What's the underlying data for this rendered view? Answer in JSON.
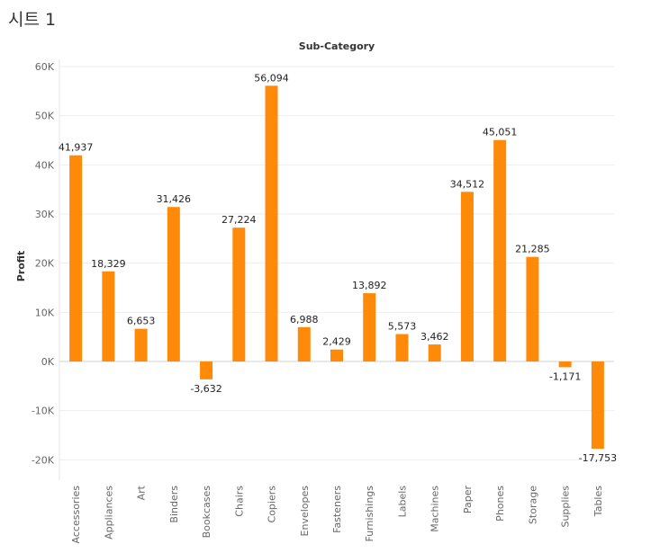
{
  "sheet": {
    "title": "시트 1"
  },
  "chart_data": {
    "type": "bar",
    "title": "Sub-Category",
    "xlabel": "",
    "ylabel": "Profit",
    "ylim": [
      -25000,
      62000
    ],
    "yticks": [
      -20000,
      -10000,
      0,
      10000,
      20000,
      30000,
      40000,
      50000,
      60000
    ],
    "ytick_labels": [
      "-20K",
      "-10K",
      "0K",
      "10K",
      "20K",
      "30K",
      "40K",
      "50K",
      "60K"
    ],
    "categories": [
      "Accessories",
      "Appliances",
      "Art",
      "Binders",
      "Bookcases",
      "Chairs",
      "Copiers",
      "Envelopes",
      "Fasteners",
      "Furnishings",
      "Labels",
      "Machines",
      "Paper",
      "Phones",
      "Storage",
      "Supplies",
      "Tables"
    ],
    "values": [
      41937,
      18329,
      6653,
      31426,
      -3632,
      27224,
      56094,
      6988,
      2429,
      13892,
      5573,
      3462,
      34512,
      45051,
      21285,
      -1171,
      -17753
    ],
    "value_labels": [
      "41,937",
      "18,329",
      "6,653",
      "31,426",
      "-3,632",
      "27,224",
      "56,094",
      "6,988",
      "2,429",
      "13,892",
      "5,573",
      "3,462",
      "34,512",
      "45,051",
      "21,285",
      "-1,171",
      "-17,753"
    ],
    "grid": true,
    "colors": {
      "bar": "#FF8A0A",
      "grid": "#EEEEEE",
      "axis_text": "#666666",
      "label_text": "#222222"
    }
  }
}
